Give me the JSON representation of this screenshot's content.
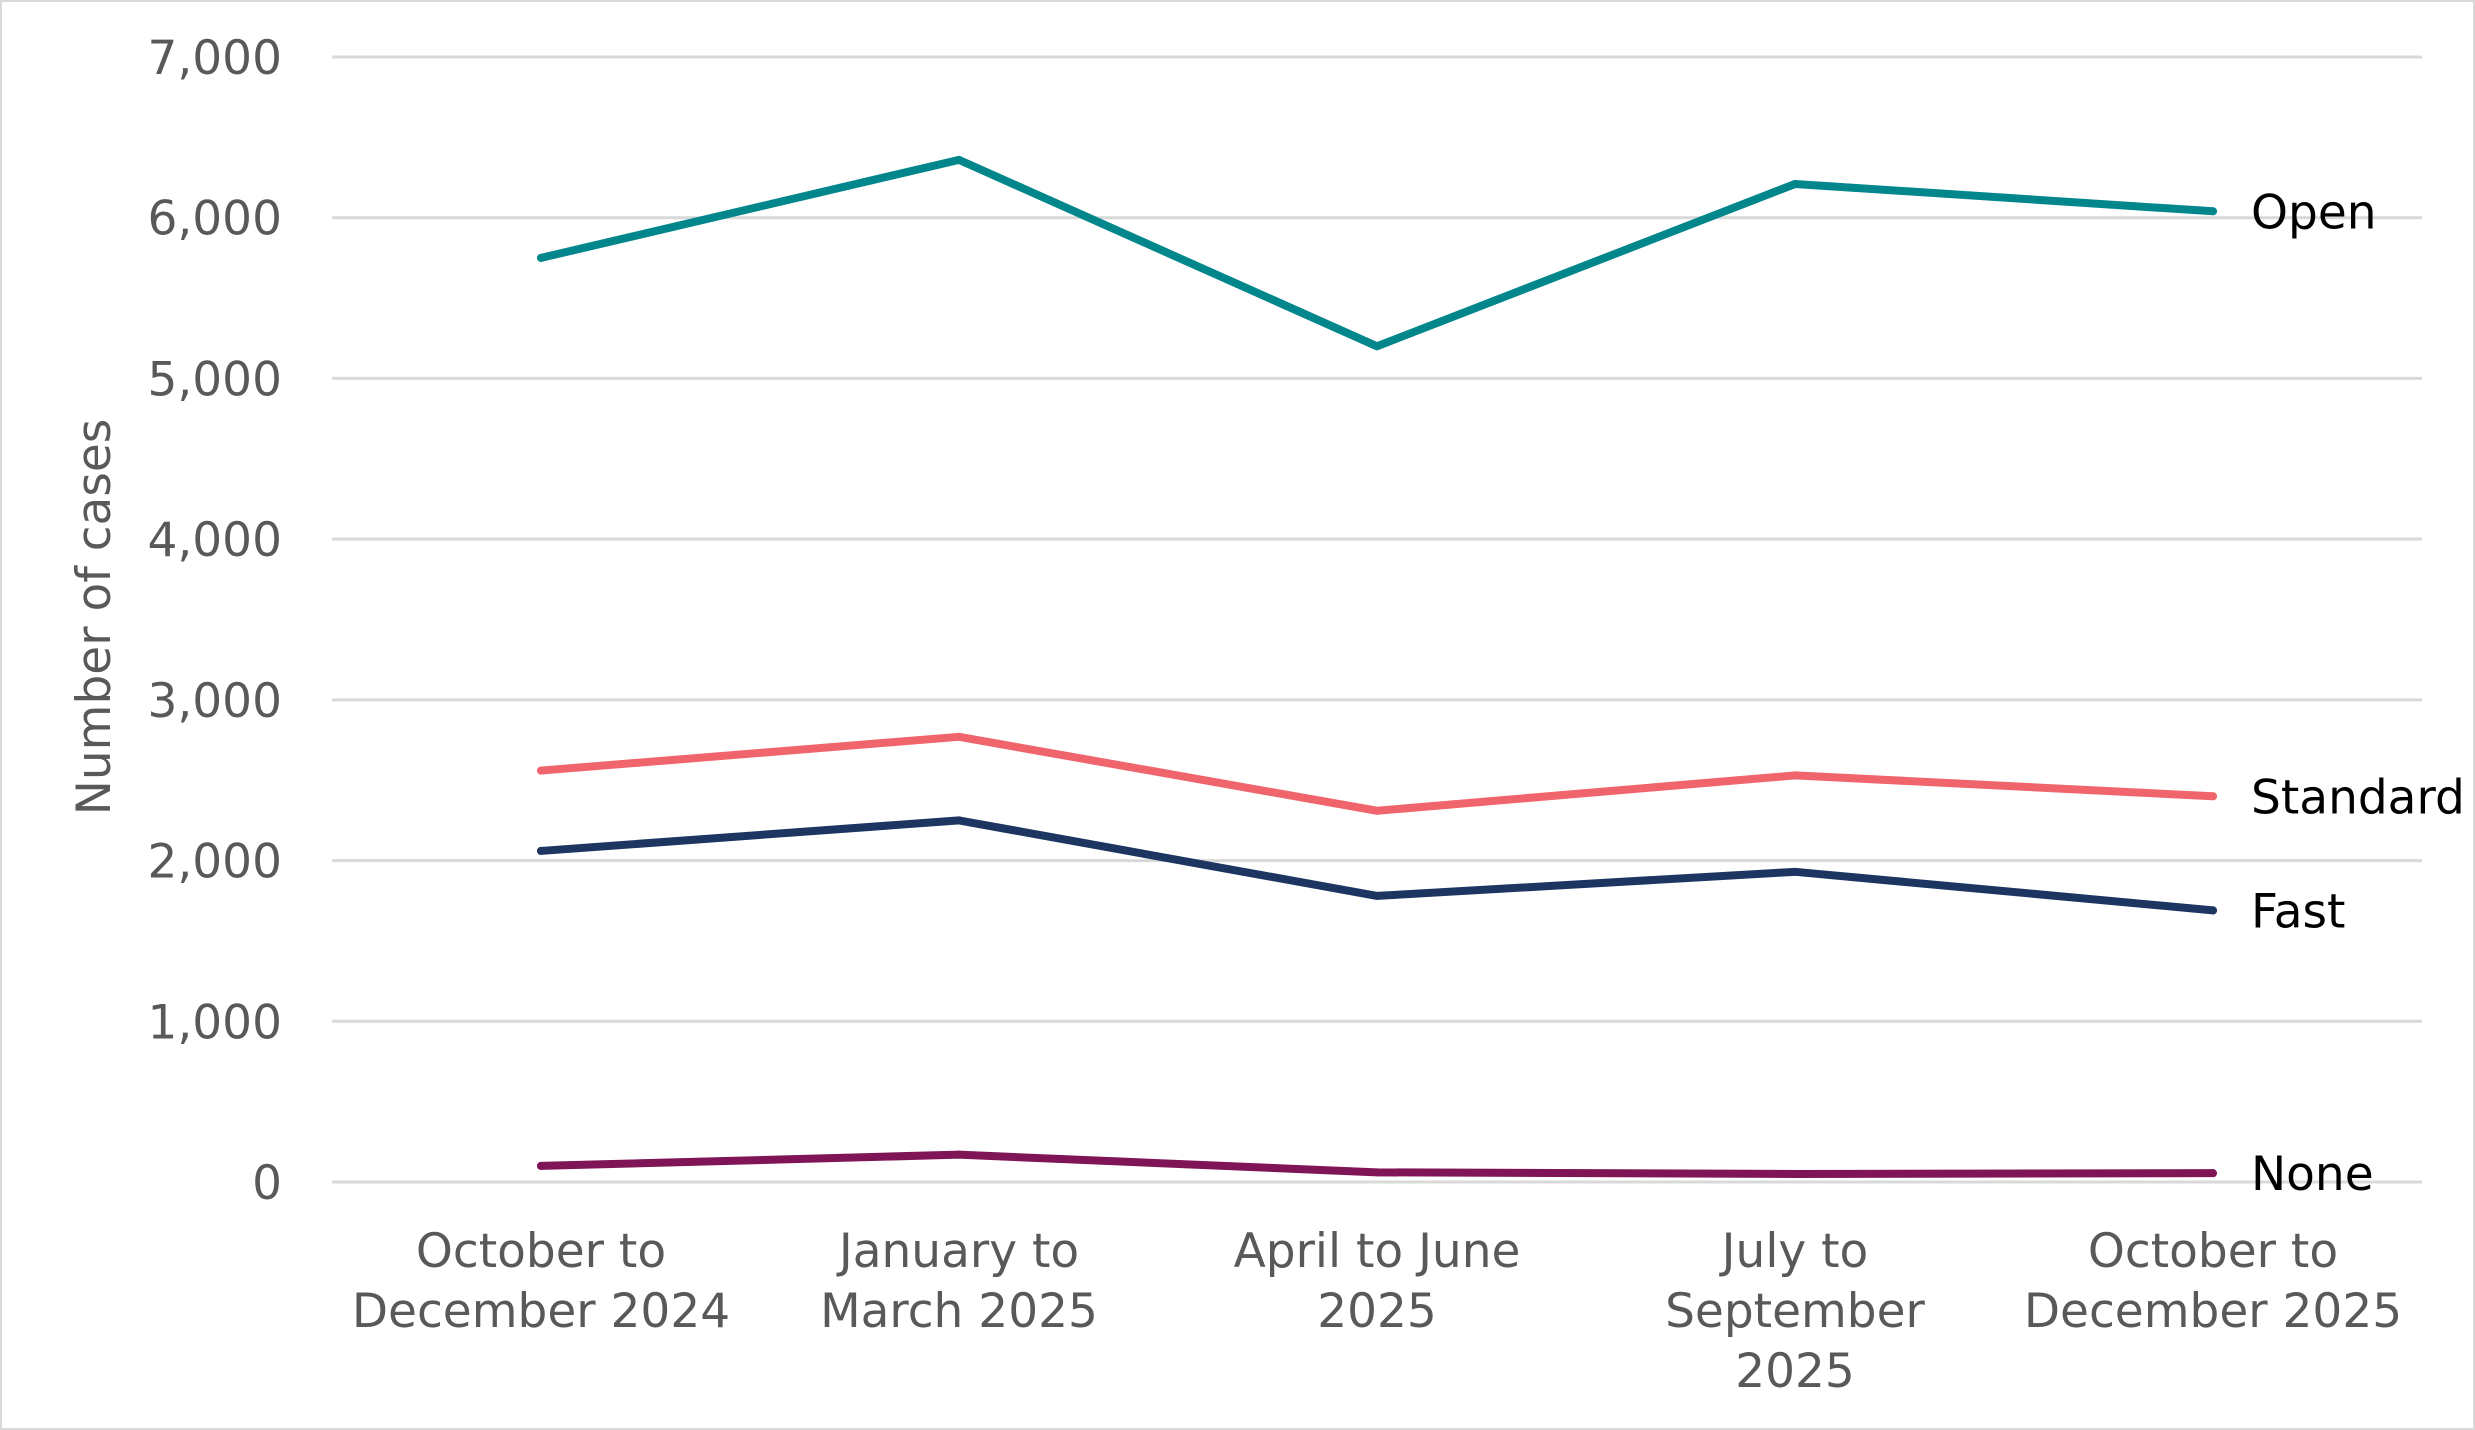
{
  "chart_data": {
    "type": "line",
    "title": "",
    "xlabel": "",
    "ylabel": "Number of cases",
    "ylim": [
      0,
      7000
    ],
    "yticks": [
      0,
      1000,
      2000,
      3000,
      4000,
      5000,
      6000,
      7000
    ],
    "ytick_labels": [
      "0",
      "1,000",
      "2,000",
      "3,000",
      "4,000",
      "5,000",
      "6,000",
      "7,000"
    ],
    "grid": true,
    "legend": "direct labels at line ends",
    "categories": [
      [
        "October to",
        "December 2024"
      ],
      [
        "January to",
        "March 2025"
      ],
      [
        "April to June",
        "2025"
      ],
      [
        "July to",
        "September",
        "2025"
      ],
      [
        "October to",
        "December 2025"
      ]
    ],
    "series": [
      {
        "name": "Open",
        "color": "#00868b",
        "values": [
          5750,
          6360,
          5200,
          6210,
          6040
        ]
      },
      {
        "name": "Standard",
        "color": "#f0646c",
        "values": [
          2560,
          2770,
          2310,
          2530,
          2400
        ]
      },
      {
        "name": "Fast",
        "color": "#1d3561",
        "values": [
          2060,
          2250,
          1780,
          1930,
          1690
        ]
      },
      {
        "name": "None",
        "color": "#7f1456",
        "values": [
          100,
          170,
          60,
          50,
          55
        ]
      }
    ]
  }
}
